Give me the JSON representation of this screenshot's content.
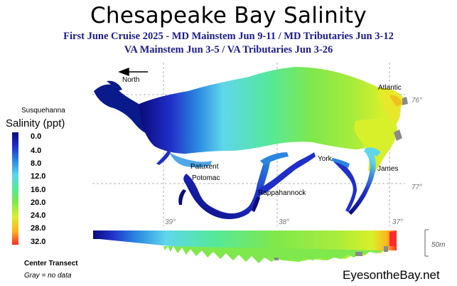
{
  "title": "Chesapeake Bay Salinity",
  "subtitle_line1": "First June Cruise 2025 - MD Mainstem Jun 9-11 / MD Tributaries Jun 3-12",
  "subtitle_line2": "VA Mainstem Jun 3-5 /  VA Tributaries Jun 3-26",
  "legend": {
    "title": "Salinity (ppt)",
    "ticks": [
      "0.0",
      "4.0",
      "8.0",
      "12.0",
      "16.0",
      "20.0",
      "24.0",
      "28.0",
      "32.0"
    ]
  },
  "labels": {
    "north": "North",
    "susquehanna": "Susquehanna",
    "patuxent": "Patuxent",
    "potomac": "Potomac",
    "rappahannock": "Rappahannock",
    "york": "York",
    "james": "James",
    "atlantic": "Atlantic"
  },
  "coords": {
    "lon_76": "76°",
    "lon_77": "77°",
    "lat_39": "39°",
    "lat_38": "38°",
    "lat_37": "37°"
  },
  "transect_label": "Center Transect",
  "no_data_note": "Gray = no data",
  "depth_scale": "50m",
  "brand": "EyesontheBay.net",
  "colors": {
    "title_blue": "#1a1a8c",
    "fresh": "#0a0a7a",
    "brackish": "#5fd6ea",
    "mid": "#7fe84c",
    "salty": "#d8f02a",
    "high": "#ff2a2a",
    "no_data": "#8a8a8a"
  }
}
